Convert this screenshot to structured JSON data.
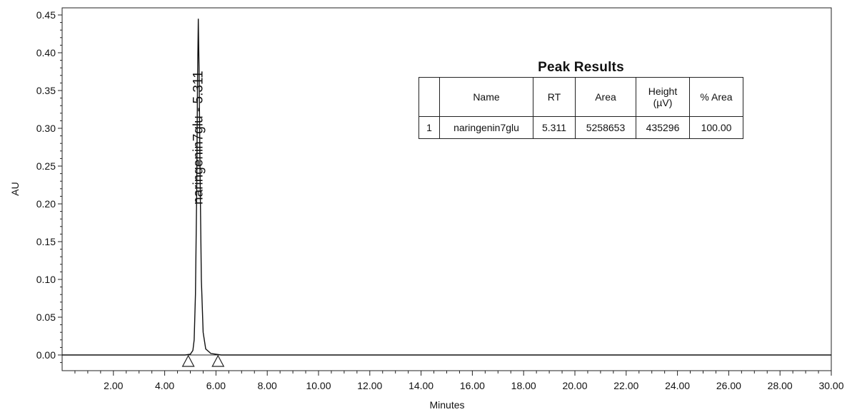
{
  "chart_data": {
    "type": "line",
    "xlabel": "Minutes",
    "ylabel": "AU",
    "xlim": [
      0,
      30
    ],
    "ylim": [
      -0.02,
      0.455
    ],
    "x_ticks": [
      "2.00",
      "4.00",
      "6.00",
      "8.00",
      "10.00",
      "12.00",
      "14.00",
      "16.00",
      "18.00",
      "20.00",
      "22.00",
      "24.00",
      "26.00",
      "28.00",
      "30.00"
    ],
    "y_ticks": [
      "0.00",
      "0.05",
      "0.10",
      "0.15",
      "0.20",
      "0.25",
      "0.30",
      "0.35",
      "0.40",
      "0.45"
    ],
    "series": [
      {
        "points": [
          [
            0.0,
            0.0
          ],
          [
            4.8,
            0.0
          ],
          [
            5.0,
            0.001
          ],
          [
            5.1,
            0.006
          ],
          [
            5.15,
            0.02
          ],
          [
            5.2,
            0.08
          ],
          [
            5.25,
            0.22
          ],
          [
            5.28,
            0.36
          ],
          [
            5.311,
            0.445
          ],
          [
            5.34,
            0.38
          ],
          [
            5.38,
            0.24
          ],
          [
            5.43,
            0.1
          ],
          [
            5.5,
            0.03
          ],
          [
            5.6,
            0.008
          ],
          [
            5.8,
            0.002
          ],
          [
            6.2,
            0.0
          ],
          [
            30.0,
            0.0
          ]
        ]
      }
    ],
    "baseline_markers": [
      4.92,
      6.08
    ],
    "peak_label": {
      "text": "naringenin7glu - 5.311",
      "x": 5.311
    }
  },
  "peak_results": {
    "title": "Peak Results",
    "headers": [
      "",
      "Name",
      "RT",
      "Area",
      "Height\n(µV)",
      "% Area"
    ],
    "header_height_line1": "Height",
    "header_height_line2": "(µV)",
    "rows": [
      [
        "1",
        "naringenin7glu",
        "5.311",
        "5258653",
        "435296",
        "100.00"
      ]
    ]
  }
}
